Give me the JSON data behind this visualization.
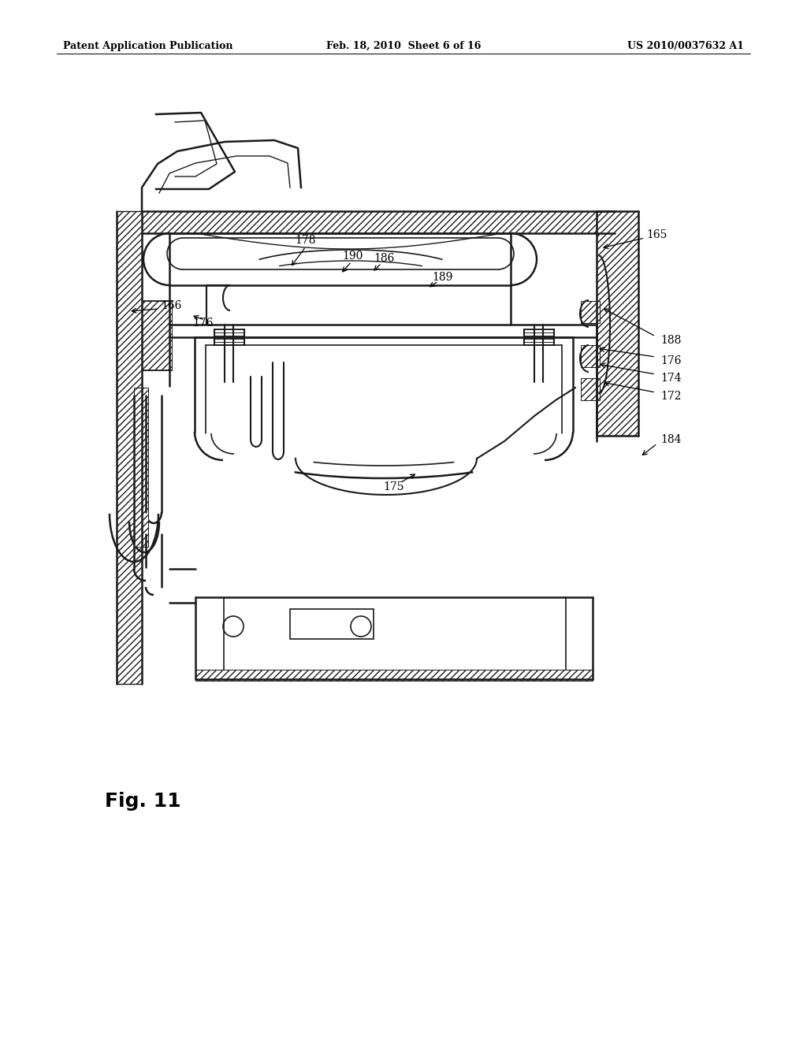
{
  "bg_color": "#ffffff",
  "line_color": "#1a1a1a",
  "header_left": "Patent Application Publication",
  "header_center": "Feb. 18, 2010  Sheet 6 of 16",
  "header_right": "US 2010/0037632 A1",
  "figure_label": "Fig. 11"
}
